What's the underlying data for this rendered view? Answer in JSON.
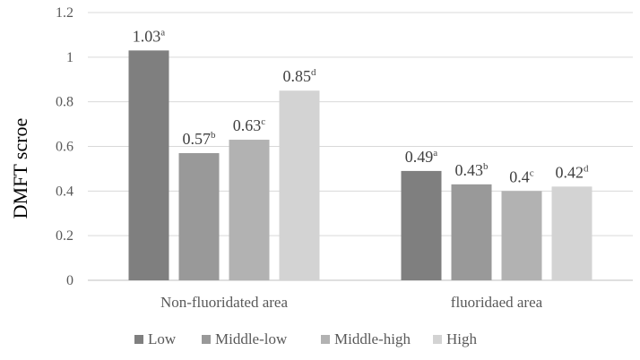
{
  "chart_data": {
    "type": "bar",
    "title": "",
    "ylabel": "DMFT scroe",
    "xlabel": "",
    "ylim": [
      0,
      1.2
    ],
    "yticks": [
      "0",
      "0.2",
      "0.4",
      "0.6",
      "0.8",
      "1",
      "1.2"
    ],
    "categories": [
      "Non-fluoridated area",
      "fluoridaed area"
    ],
    "series": [
      {
        "name": "Low",
        "color": "#7f7f7f",
        "values": [
          1.03,
          0.49
        ],
        "labels": [
          "1.03",
          "0.49"
        ],
        "sups": [
          "a",
          "a"
        ]
      },
      {
        "name": "Middle-low",
        "color": "#999999",
        "values": [
          0.57,
          0.43
        ],
        "labels": [
          "0.57",
          "0.43"
        ],
        "sups": [
          "b",
          "b"
        ]
      },
      {
        "name": "Middle-high",
        "color": "#b2b2b2",
        "values": [
          0.63,
          0.4
        ],
        "labels": [
          "0.63",
          "0.4"
        ],
        "sups": [
          "c",
          "c"
        ]
      },
      {
        "name": "High",
        "color": "#d3d3d3",
        "values": [
          0.85,
          0.42
        ],
        "labels": [
          "0.85",
          "0.42"
        ],
        "sups": [
          "d",
          "d"
        ]
      }
    ],
    "grid": true,
    "legend": "bottom"
  }
}
